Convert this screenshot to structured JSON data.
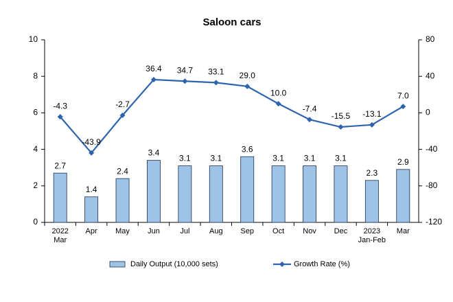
{
  "chart_data": {
    "type": "bar",
    "title": "Saloon cars",
    "categories": [
      "2022 Mar",
      "Apr",
      "May",
      "Jun",
      "Jul",
      "Aug",
      "Sep",
      "Oct",
      "Nov",
      "Dec",
      "2023 Jan-Feb",
      "Mar"
    ],
    "series": [
      {
        "name": "Daily Output (10,000 sets)",
        "type": "bar",
        "color": "#9dc3e6",
        "values": [
          2.7,
          1.4,
          2.4,
          3.4,
          3.1,
          3.1,
          3.6,
          3.1,
          3.1,
          3.1,
          2.3,
          2.9
        ]
      },
      {
        "name": "Growth Rate (%)",
        "type": "line",
        "axis": "y2",
        "color": "#2e64ae",
        "values": [
          -4.3,
          -43.9,
          -2.7,
          36.4,
          34.7,
          33.1,
          29.0,
          10.0,
          -7.4,
          -15.5,
          -13.1,
          7.0
        ],
        "value_labels": [
          "-4.3",
          "-43.9",
          "-2.7",
          "36.4",
          "34.7",
          "33.1",
          "29.0",
          "10.0",
          "-7.4",
          "-15.5",
          "-13.1",
          "7.0"
        ]
      }
    ],
    "ylim": [
      0,
      10
    ],
    "yticks": [
      0,
      2,
      4,
      6,
      8,
      10
    ],
    "y2lim": [
      -120,
      80
    ],
    "y2ticks": [
      -120,
      -80,
      -40,
      0,
      40,
      80
    ],
    "grid": false,
    "legend": "bottom"
  }
}
